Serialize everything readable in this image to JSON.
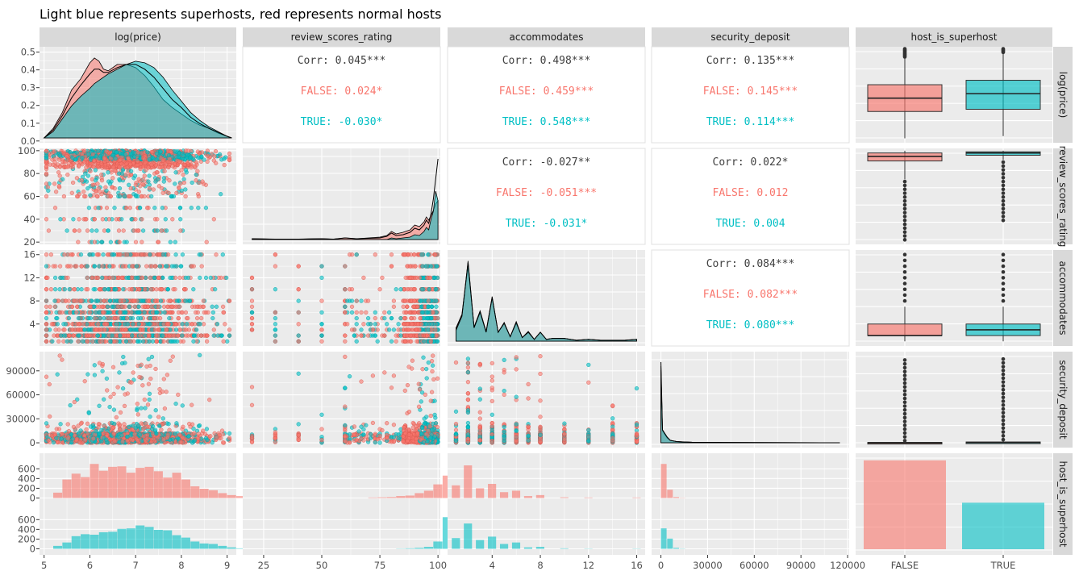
{
  "title": "Light blue represents superhosts, red represents normal hosts",
  "colors": {
    "false_host": "#F8766D",
    "true_host": "#00BFC4",
    "overall": "#404040",
    "panel_bg": "#EBEBEB",
    "strip_bg": "#D9D9D9",
    "grid": "#FFFFFF"
  },
  "chart_data": {
    "type": "pairs-matrix",
    "variables": [
      "log(price)",
      "review_scores_rating",
      "accommodates",
      "security_deposit",
      "host_is_superhost"
    ],
    "groups": [
      "FALSE",
      "TRUE"
    ],
    "axes": {
      "log_price": {
        "ticks": [
          5,
          6,
          7,
          8,
          9
        ],
        "tick_labels": [
          "5",
          "6",
          "7",
          "8",
          "9"
        ],
        "lim": [
          4.9,
          9.2
        ]
      },
      "review_scores_rating": {
        "ticks": [
          25,
          50,
          75,
          100
        ],
        "tick_labels": [
          "25",
          "50",
          "75",
          "100"
        ],
        "lim": [
          16,
          101
        ]
      },
      "accommodates": {
        "ticks": [
          4,
          8,
          12,
          16
        ],
        "tick_labels": [
          "4",
          "8",
          "12",
          "16"
        ],
        "lim": [
          0.3,
          16.7
        ]
      },
      "security_deposit": {
        "ticks": [
          0,
          30000,
          60000,
          90000,
          120000
        ],
        "tick_labels": [
          "0",
          "30000",
          "60000",
          "90000",
          "120000"
        ],
        "lim": [
          -6000,
          121000
        ]
      },
      "density_y": {
        "ticks": [
          0.0,
          0.1,
          0.2,
          0.3,
          0.4,
          0.5
        ],
        "tick_labels": [
          "0.0",
          "0.1",
          "0.2",
          "0.3",
          "0.4",
          "0.5"
        ],
        "lim": [
          -0.01,
          0.53
        ]
      },
      "rating_y": {
        "ticks": [
          20,
          40,
          60,
          80,
          100
        ],
        "tick_labels": [
          "20",
          "40",
          "60",
          "80",
          "100"
        ],
        "lim": [
          18,
          102
        ]
      },
      "accommodates_y": {
        "ticks": [
          4,
          8,
          12,
          16
        ],
        "tick_labels": [
          "4",
          "8",
          "12",
          "16"
        ],
        "lim": [
          0.2,
          16.8
        ]
      },
      "deposit_y": {
        "ticks": [
          0,
          30000,
          60000,
          90000
        ],
        "tick_labels": [
          "0",
          "30000",
          "60000",
          "90000"
        ],
        "lim": [
          -6000,
          114000
        ]
      },
      "count_y": {
        "ticks": [
          0,
          200,
          400,
          600
        ],
        "tick_labels": [
          "0",
          "200",
          "400",
          "600"
        ],
        "lim": [
          -25,
          820
        ]
      },
      "superhost_x": {
        "tick_labels": [
          "FALSE",
          "TRUE"
        ]
      }
    },
    "correlations": [
      {
        "pair": [
          "log(price)",
          "review_scores_rating"
        ],
        "corr": "Corr: 0.045***",
        "false": "FALSE: 0.024*",
        "true": "TRUE: -0.030*"
      },
      {
        "pair": [
          "log(price)",
          "accommodates"
        ],
        "corr": "Corr: 0.498***",
        "false": "FALSE: 0.459***",
        "true": "TRUE: 0.548***"
      },
      {
        "pair": [
          "log(price)",
          "security_deposit"
        ],
        "corr": "Corr: 0.135***",
        "false": "FALSE: 0.145***",
        "true": "TRUE: 0.114***"
      },
      {
        "pair": [
          "review_scores_rating",
          "accommodates"
        ],
        "corr": "Corr: -0.027**",
        "false": "FALSE: -0.051***",
        "true": "TRUE: -0.031*"
      },
      {
        "pair": [
          "review_scores_rating",
          "security_deposit"
        ],
        "corr": "Corr: 0.022*",
        "false": "FALSE: 0.012",
        "true": "TRUE: 0.004"
      },
      {
        "pair": [
          "accommodates",
          "security_deposit"
        ],
        "corr": "Corr: 0.084***",
        "false": "FALSE: 0.082***",
        "true": "TRUE: 0.080***"
      }
    ],
    "density_log_price": {
      "x": [
        5.0,
        5.2,
        5.4,
        5.6,
        5.8,
        6.0,
        6.1,
        6.2,
        6.3,
        6.4,
        6.6,
        6.8,
        7.0,
        7.2,
        7.4,
        7.6,
        7.8,
        8.0,
        8.2,
        8.4,
        8.6,
        8.8,
        9.0,
        9.1
      ],
      "false": [
        0.0,
        0.06,
        0.16,
        0.3,
        0.37,
        0.47,
        0.5,
        0.48,
        0.43,
        0.42,
        0.46,
        0.46,
        0.44,
        0.39,
        0.32,
        0.24,
        0.19,
        0.15,
        0.11,
        0.08,
        0.06,
        0.03,
        0.01,
        0.0
      ],
      "true": [
        0.0,
        0.04,
        0.12,
        0.2,
        0.26,
        0.31,
        0.34,
        0.36,
        0.38,
        0.4,
        0.43,
        0.46,
        0.48,
        0.47,
        0.44,
        0.38,
        0.3,
        0.23,
        0.16,
        0.11,
        0.07,
        0.04,
        0.01,
        0.0
      ],
      "overall": [
        0.0,
        0.05,
        0.14,
        0.25,
        0.33,
        0.4,
        0.43,
        0.43,
        0.41,
        0.41,
        0.44,
        0.46,
        0.46,
        0.43,
        0.38,
        0.31,
        0.24,
        0.19,
        0.13,
        0.09,
        0.06,
        0.035,
        0.01,
        0.0
      ]
    },
    "density_review_scores_rating": {
      "x": [
        20,
        30,
        40,
        50,
        55,
        60,
        65,
        70,
        75,
        78,
        80,
        82,
        85,
        88,
        90,
        92,
        94,
        95,
        96,
        97,
        98,
        99,
        100
      ],
      "false": [
        0.01,
        0.005,
        0.005,
        0.01,
        0.005,
        0.02,
        0.01,
        0.02,
        0.03,
        0.05,
        0.1,
        0.07,
        0.09,
        0.12,
        0.18,
        0.16,
        0.22,
        0.28,
        0.24,
        0.3,
        0.36,
        0.44,
        0.48
      ],
      "true": [
        0.0,
        0.0,
        0.0,
        0.0,
        0.0,
        0.0,
        0.0,
        0.0,
        0.0,
        0.0,
        0.02,
        0.01,
        0.02,
        0.03,
        0.06,
        0.05,
        0.1,
        0.15,
        0.12,
        0.25,
        0.35,
        0.6,
        0.48
      ],
      "overall": [
        0.01,
        0.005,
        0.005,
        0.01,
        0.005,
        0.02,
        0.01,
        0.015,
        0.02,
        0.04,
        0.08,
        0.05,
        0.06,
        0.09,
        0.14,
        0.12,
        0.18,
        0.24,
        0.2,
        0.32,
        0.5,
        0.75,
        1.0
      ]
    },
    "density_accommodates": {
      "x": [
        1,
        1.5,
        2,
        2.5,
        3,
        3.5,
        4,
        4.5,
        5,
        5.5,
        6,
        6.5,
        7,
        7.5,
        8,
        8.5,
        9,
        10,
        11,
        12,
        13,
        14,
        15,
        16
      ],
      "false": [
        0.15,
        0.3,
        0.85,
        0.15,
        0.32,
        0.1,
        0.48,
        0.1,
        0.2,
        0.05,
        0.2,
        0.04,
        0.1,
        0.02,
        0.1,
        0.02,
        0.03,
        0.03,
        0.01,
        0.02,
        0.01,
        0.01,
        0.01,
        0.02
      ],
      "true": [
        0.12,
        0.28,
        0.9,
        0.16,
        0.34,
        0.11,
        0.5,
        0.1,
        0.21,
        0.05,
        0.22,
        0.04,
        0.11,
        0.02,
        0.1,
        0.02,
        0.03,
        0.03,
        0.01,
        0.02,
        0.01,
        0.01,
        0.01,
        0.02
      ],
      "overall": [
        0.14,
        0.3,
        0.88,
        0.15,
        0.33,
        0.1,
        0.49,
        0.1,
        0.2,
        0.05,
        0.21,
        0.04,
        0.1,
        0.02,
        0.1,
        0.02,
        0.03,
        0.03,
        0.01,
        0.02,
        0.01,
        0.01,
        0.01,
        0.02
      ]
    },
    "density_security_deposit": {
      "x": [
        0,
        1000,
        2000,
        4000,
        6000,
        10000,
        15000,
        20000,
        40000,
        60000,
        90000,
        115000
      ],
      "false": [
        0.95,
        0.15,
        0.12,
        0.06,
        0.03,
        0.015,
        0.01,
        0.006,
        0.004,
        0.002,
        0.001,
        0.0
      ],
      "true": [
        0.9,
        0.16,
        0.13,
        0.07,
        0.03,
        0.015,
        0.01,
        0.006,
        0.004,
        0.002,
        0.001,
        0.0
      ],
      "overall": [
        1.0,
        0.16,
        0.13,
        0.07,
        0.03,
        0.015,
        0.01,
        0.006,
        0.004,
        0.002,
        0.001,
        0.0
      ]
    },
    "boxplots": {
      "log_price": {
        "false": [
          5.1,
          6.3,
          6.9,
          7.5,
          8.7
        ],
        "true": [
          5.2,
          6.4,
          7.1,
          7.7,
          8.9
        ]
      },
      "review_scores_rating": {
        "false": [
          75,
          91,
          95,
          98,
          100
        ],
        "true": [
          92,
          96,
          98,
          99,
          100
        ]
      },
      "accommodates": {
        "false": [
          1,
          2,
          2,
          4,
          7
        ],
        "true": [
          1,
          2,
          3,
          4,
          7
        ]
      },
      "security_deposit": {
        "false": [
          0,
          0,
          0,
          500,
          1200
        ],
        "true": [
          0,
          0,
          500,
          1000,
          2500
        ]
      }
    },
    "bar_host_is_superhost": {
      "categories": [
        "FALSE",
        "TRUE"
      ],
      "counts": [
        650,
        340
      ],
      "count_lim": [
        0,
        690
      ]
    },
    "histograms_log_price": {
      "bin_start": 5.2,
      "bin_width": 0.2,
      "false": [
        110,
        380,
        500,
        430,
        700,
        560,
        640,
        650,
        520,
        620,
        640,
        550,
        420,
        520,
        380,
        240,
        190,
        160,
        100,
        60,
        40,
        20,
        5
      ],
      "true": [
        60,
        130,
        260,
        300,
        290,
        340,
        350,
        410,
        420,
        480,
        450,
        390,
        380,
        280,
        230,
        150,
        110,
        100,
        60,
        30,
        10,
        5,
        0
      ]
    },
    "histograms_review_scores_rating": {
      "bin_start": 70,
      "bin_width": 4,
      "false": [
        10,
        15,
        20,
        40,
        50,
        100,
        150,
        280,
        460
      ],
      "true": [
        0,
        0,
        0,
        5,
        10,
        20,
        40,
        150,
        650
      ]
    },
    "histograms_accommodates": {
      "bins": [
        1,
        2,
        3,
        4,
        5,
        6,
        7,
        8,
        10,
        12,
        16
      ],
      "false": [
        260,
        670,
        200,
        290,
        120,
        150,
        40,
        60,
        15,
        10,
        10
      ],
      "true": [
        220,
        520,
        180,
        250,
        100,
        130,
        30,
        40,
        10,
        5,
        5
      ]
    },
    "histograms_security_deposit": {
      "bins": [
        0,
        4000,
        8000,
        12000
      ],
      "false": [
        700,
        170,
        20,
        5
      ],
      "true": [
        420,
        210,
        20,
        5
      ]
    },
    "scatter_note": "scatter panels show individual listings, colored by host_is_superhost"
  }
}
